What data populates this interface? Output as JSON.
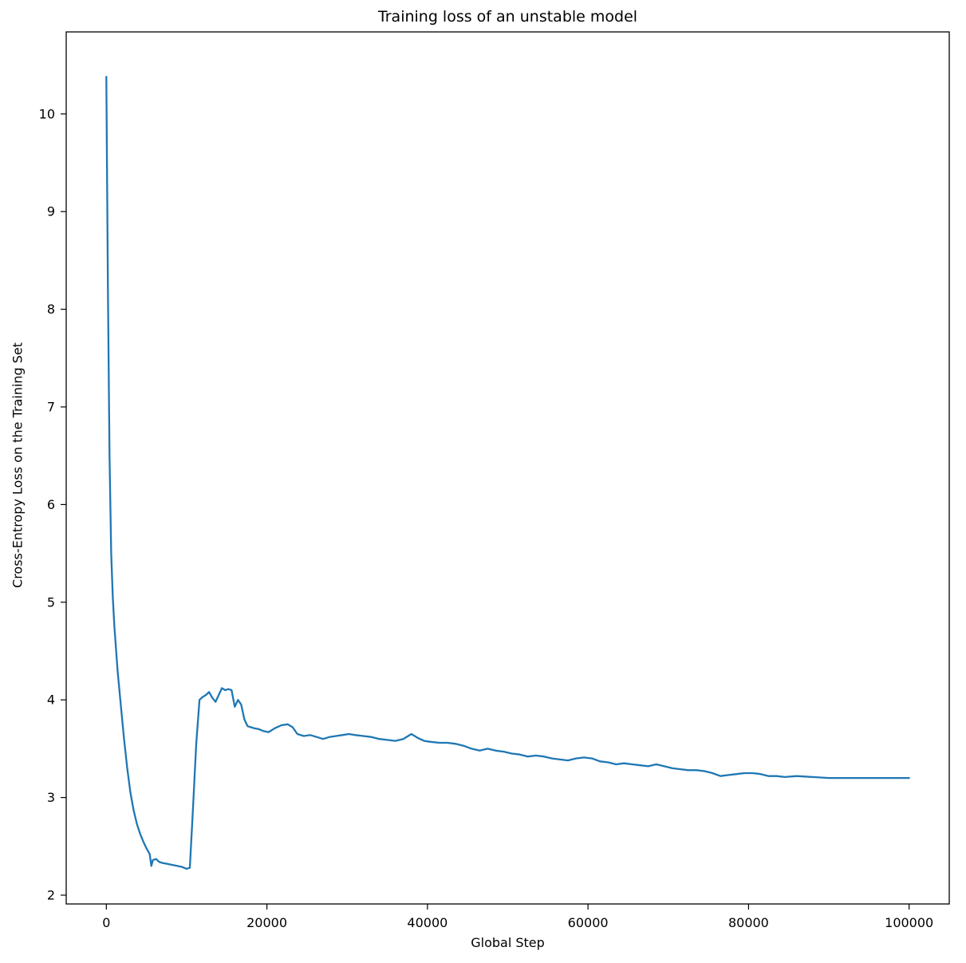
{
  "chart_data": {
    "type": "line",
    "title": "Training loss of an unstable model",
    "xlabel": "Global Step",
    "ylabel": "Cross-Entropy Loss on the Training Set",
    "xlim": [
      -5000,
      105000
    ],
    "ylim": [
      1.91,
      10.84
    ],
    "xticks": [
      0,
      20000,
      40000,
      60000,
      80000,
      100000
    ],
    "yticks": [
      2,
      3,
      4,
      5,
      6,
      7,
      8,
      9,
      10
    ],
    "grid": false,
    "legend_position": "none",
    "line_color": "#1f77b4",
    "series": [
      {
        "name": "training_loss",
        "x": [
          0,
          200,
          400,
          600,
          800,
          1000,
          1400,
          1800,
          2200,
          2600,
          3000,
          3400,
          3800,
          4200,
          4600,
          5000,
          5400,
          5600,
          5800,
          6200,
          6600,
          7000,
          7600,
          8200,
          8800,
          9400,
          10000,
          10400,
          10800,
          11200,
          11600,
          12000,
          12400,
          12800,
          13200,
          13600,
          14000,
          14400,
          14800,
          15200,
          15600,
          16000,
          16400,
          16800,
          17200,
          17600,
          18000,
          18400,
          19000,
          19600,
          20200,
          21000,
          21800,
          22600,
          23200,
          23800,
          24600,
          25400,
          26200,
          27000,
          27800,
          28600,
          29400,
          30200,
          31000,
          32000,
          33000,
          34000,
          35000,
          36000,
          37000,
          38000,
          38800,
          39600,
          40400,
          41500,
          42500,
          43500,
          44500,
          45500,
          46500,
          47500,
          48500,
          49500,
          50500,
          51500,
          52500,
          53500,
          54500,
          55500,
          56500,
          57500,
          58500,
          59500,
          60500,
          61500,
          62500,
          63500,
          64500,
          65500,
          66500,
          67500,
          68500,
          69500,
          70500,
          71500,
          72500,
          73500,
          74500,
          75500,
          76500,
          77500,
          78500,
          79500,
          80500,
          81500,
          82500,
          83500,
          84500,
          86000,
          88000,
          90000,
          92000,
          94000,
          96000,
          98000,
          100000
        ],
        "y": [
          10.38,
          8.2,
          6.5,
          5.5,
          5.05,
          4.75,
          4.3,
          3.95,
          3.6,
          3.3,
          3.05,
          2.87,
          2.73,
          2.63,
          2.55,
          2.48,
          2.42,
          2.3,
          2.36,
          2.37,
          2.34,
          2.33,
          2.32,
          2.31,
          2.3,
          2.29,
          2.27,
          2.28,
          2.9,
          3.55,
          4.0,
          4.03,
          4.05,
          4.08,
          4.02,
          3.98,
          4.05,
          4.12,
          4.1,
          4.11,
          4.1,
          3.93,
          4.0,
          3.95,
          3.8,
          3.73,
          3.72,
          3.71,
          3.7,
          3.68,
          3.67,
          3.71,
          3.74,
          3.75,
          3.72,
          3.65,
          3.63,
          3.64,
          3.62,
          3.6,
          3.62,
          3.63,
          3.64,
          3.65,
          3.64,
          3.63,
          3.62,
          3.6,
          3.59,
          3.58,
          3.6,
          3.65,
          3.61,
          3.58,
          3.57,
          3.56,
          3.56,
          3.55,
          3.53,
          3.5,
          3.48,
          3.5,
          3.48,
          3.47,
          3.45,
          3.44,
          3.42,
          3.43,
          3.42,
          3.4,
          3.39,
          3.38,
          3.4,
          3.41,
          3.4,
          3.37,
          3.36,
          3.34,
          3.35,
          3.34,
          3.33,
          3.32,
          3.34,
          3.32,
          3.3,
          3.29,
          3.28,
          3.28,
          3.27,
          3.25,
          3.22,
          3.23,
          3.24,
          3.25,
          3.25,
          3.24,
          3.22,
          3.22,
          3.21,
          3.22,
          3.21,
          3.2,
          3.2,
          3.2,
          3.2,
          3.2,
          3.2
        ]
      }
    ]
  }
}
